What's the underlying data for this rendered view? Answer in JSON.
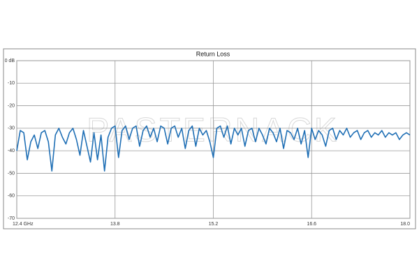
{
  "chart_data": {
    "type": "line",
    "title": "Return Loss",
    "watermark": "PASTERNACK",
    "x": [
      12.4,
      12.45,
      12.5,
      12.55,
      12.6,
      12.65,
      12.7,
      12.75,
      12.8,
      12.85,
      12.9,
      12.95,
      13.0,
      13.05,
      13.1,
      13.15,
      13.2,
      13.25,
      13.3,
      13.35,
      13.4,
      13.45,
      13.5,
      13.55,
      13.6,
      13.65,
      13.7,
      13.75,
      13.8,
      13.85,
      13.9,
      13.95,
      14.0,
      14.05,
      14.1,
      14.15,
      14.2,
      14.25,
      14.3,
      14.35,
      14.4,
      14.45,
      14.5,
      14.55,
      14.6,
      14.65,
      14.7,
      14.75,
      14.8,
      14.85,
      14.9,
      14.95,
      15.0,
      15.05,
      15.1,
      15.15,
      15.2,
      15.25,
      15.3,
      15.35,
      15.4,
      15.45,
      15.5,
      15.55,
      15.6,
      15.65,
      15.7,
      15.75,
      15.8,
      15.85,
      15.9,
      15.95,
      16.0,
      16.05,
      16.1,
      16.15,
      16.2,
      16.25,
      16.3,
      16.35,
      16.4,
      16.45,
      16.5,
      16.55,
      16.6,
      16.65,
      16.7,
      16.75,
      16.8,
      16.85,
      16.9,
      16.95,
      17.0,
      17.05,
      17.1,
      17.15,
      17.2,
      17.25,
      17.3,
      17.35,
      17.4,
      17.45,
      17.5,
      17.55,
      17.6,
      17.65,
      17.7,
      17.75,
      17.8,
      17.85,
      17.9,
      17.95,
      18.0
    ],
    "series": [
      {
        "name": "Return Loss",
        "color": "#1f6fb5",
        "values": [
          -40,
          -31,
          -32,
          -44,
          -36,
          -33,
          -39,
          -32,
          -31,
          -36,
          -49,
          -33,
          -30,
          -34,
          -37,
          -32,
          -30,
          -35,
          -42,
          -31,
          -38,
          -45,
          -32,
          -44,
          -33,
          -49,
          -34,
          -30,
          -29,
          -43,
          -31,
          -29,
          -35,
          -30,
          -29,
          -38,
          -31,
          -29,
          -34,
          -30,
          -36,
          -29,
          -30,
          -37,
          -30,
          -29,
          -34,
          -30,
          -39,
          -31,
          -29,
          -38,
          -30,
          -33,
          -31,
          -36,
          -43,
          -30,
          -29,
          -34,
          -29,
          -37,
          -30,
          -33,
          -30,
          -38,
          -31,
          -30,
          -36,
          -30,
          -33,
          -37,
          -30,
          -32,
          -36,
          -30,
          -39,
          -31,
          -32,
          -35,
          -30,
          -37,
          -31,
          -43,
          -30,
          -35,
          -31,
          -33,
          -38,
          -31,
          -30,
          -35,
          -31,
          -33,
          -30,
          -34,
          -32,
          -31,
          -35,
          -32,
          -31,
          -34,
          -32,
          -33,
          -31,
          -34,
          -32,
          -33,
          -32,
          -35,
          -33,
          -32,
          -33
        ]
      }
    ],
    "xlim": [
      12.4,
      18.0
    ],
    "xticks": [
      {
        "value": 12.4,
        "label": "12.4  GHz"
      },
      13.8,
      15.2,
      16.6,
      {
        "value": 18.0,
        "label": "18.0"
      }
    ],
    "ylim": [
      -70,
      0
    ],
    "yticks": [
      {
        "value": 0,
        "label": "0 dB"
      },
      -10,
      -20,
      -30,
      -40,
      -50,
      -60,
      -70
    ],
    "grid": true
  }
}
